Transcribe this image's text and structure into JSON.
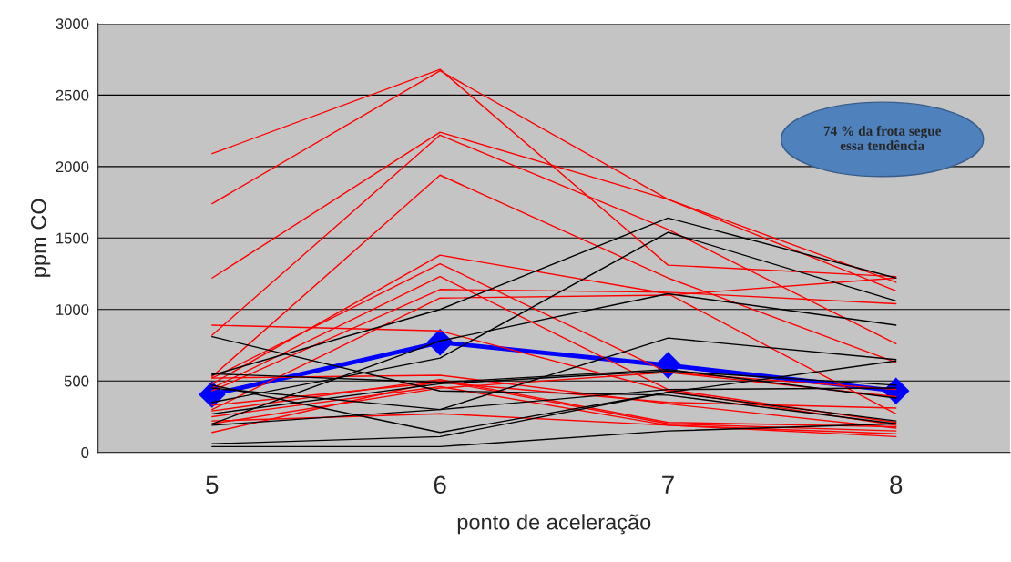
{
  "chart_data": {
    "type": "line",
    "xlabel": "ponto de aceleração",
    "ylabel": "ppm CO",
    "categories": [
      "5",
      "6",
      "7",
      "8"
    ],
    "ylim": [
      0,
      3000
    ],
    "yticks": [
      0,
      500,
      1000,
      1500,
      2000,
      2500,
      3000
    ],
    "grid": "y",
    "legend": false,
    "marker": "none",
    "annotations": [
      "74 % da frota segue\nessa tendência"
    ],
    "series": [
      {
        "color": "#ff0000",
        "values": [
          2090,
          2680,
          1310,
          1230
        ]
      },
      {
        "color": "#ff0000",
        "values": [
          1740,
          2670,
          1770,
          1130
        ]
      },
      {
        "color": "#ff0000",
        "values": [
          1220,
          2240,
          1770,
          1190
        ]
      },
      {
        "color": "#ff0000",
        "values": [
          820,
          2220,
          1560,
          760
        ]
      },
      {
        "color": "#ff0000",
        "values": [
          530,
          1940,
          1220,
          630
        ]
      },
      {
        "color": "#ff0000",
        "values": [
          480,
          1380,
          1110,
          270
        ]
      },
      {
        "color": "#ff0000",
        "values": [
          520,
          1320,
          560,
          390
        ]
      },
      {
        "color": "#ff0000",
        "values": [
          450,
          1230,
          440,
          210
        ]
      },
      {
        "color": "#ff0000",
        "values": [
          430,
          1140,
          1120,
          1040
        ]
      },
      {
        "color": "#ff0000",
        "values": [
          300,
          1080,
          1100,
          1220
        ]
      },
      {
        "color": "#ff0000",
        "values": [
          890,
          850,
          430,
          190
        ]
      },
      {
        "color": "#ff0000",
        "values": [
          290,
          510,
          210,
          180
        ]
      },
      {
        "color": "#ff0000",
        "values": [
          250,
          460,
          190,
          130
        ]
      },
      {
        "color": "#ff0000",
        "values": [
          140,
          500,
          200,
          150
        ]
      },
      {
        "color": "#ff0000",
        "values": [
          220,
          270,
          190,
          110
        ]
      },
      {
        "color": "#ff0000",
        "values": [
          330,
          490,
          350,
          310
        ]
      },
      {
        "color": "#ff0000",
        "values": [
          200,
          450,
          560,
          440
        ]
      },
      {
        "color": "#ff0000",
        "values": [
          520,
          540,
          340,
          170
        ]
      },
      {
        "color": "#000000",
        "values": [
          810,
          430,
          400,
          200
        ]
      },
      {
        "color": "#000000",
        "values": [
          540,
          1000,
          1640,
          1220
        ]
      },
      {
        "color": "#000000",
        "values": [
          350,
          660,
          1540,
          1060
        ]
      },
      {
        "color": "#000000",
        "values": [
          200,
          780,
          1110,
          890
        ]
      },
      {
        "color": "#000000",
        "values": [
          550,
          490,
          580,
          380
        ]
      },
      {
        "color": "#000000",
        "values": [
          450,
          300,
          800,
          650
        ]
      },
      {
        "color": "#000000",
        "values": [
          470,
          140,
          420,
          220
        ]
      },
      {
        "color": "#000000",
        "values": [
          270,
          480,
          570,
          470
        ]
      },
      {
        "color": "#000000",
        "values": [
          60,
          110,
          420,
          640
        ]
      },
      {
        "color": "#000000",
        "values": [
          40,
          40,
          150,
          200
        ]
      },
      {
        "color": "#000000",
        "values": [
          190,
          300,
          440,
          450
        ]
      },
      {
        "color": "#0000ff",
        "values": [
          405,
          770,
          610,
          430
        ],
        "marker": "diamond"
      }
    ]
  }
}
